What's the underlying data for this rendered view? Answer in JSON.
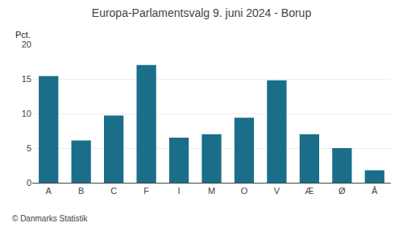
{
  "chart_data": {
    "type": "bar",
    "title": "Europa-Parlamentsvalg 9. juni 2024 - Borup",
    "categories": [
      "A",
      "B",
      "C",
      "F",
      "I",
      "M",
      "O",
      "V",
      "Æ",
      "Ø",
      "Å"
    ],
    "values": [
      15.4,
      6.1,
      9.7,
      17.0,
      6.5,
      7.0,
      9.4,
      14.8,
      7.0,
      5.0,
      1.8
    ],
    "color": "#1a6e8a",
    "ylabel": "Pct.",
    "annotations": [
      "© Danmarks Statistik"
    ],
    "ylim": [
      0,
      20
    ],
    "yticks": [
      0,
      5,
      10,
      15,
      20
    ],
    "grid": true
  }
}
